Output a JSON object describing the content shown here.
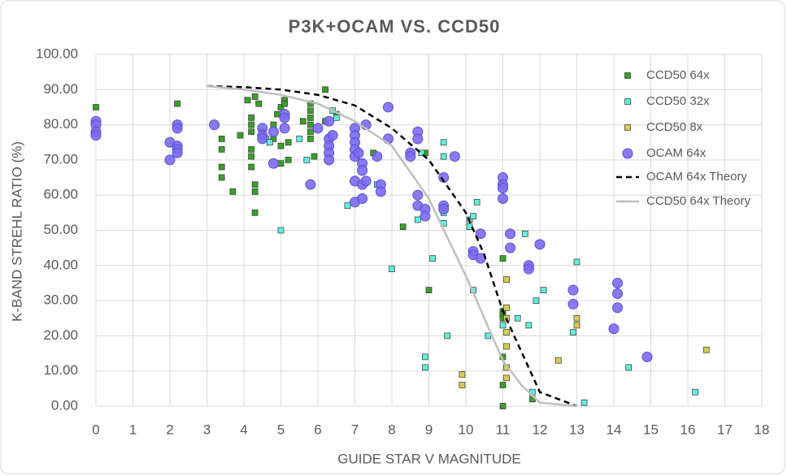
{
  "chart_data": {
    "type": "scatter",
    "title": "P3K+OCAM VS. CCD50",
    "xlabel": "GUIDE STAR V MAGNITUDE",
    "ylabel": "K-BAND STREHL RATIO (%)",
    "xlim": [
      0,
      18
    ],
    "xticks": [
      0,
      1,
      2,
      3,
      4,
      5,
      6,
      7,
      8,
      9,
      10,
      11,
      12,
      13,
      14,
      15,
      16,
      17,
      18
    ],
    "ylim": [
      0,
      100
    ],
    "yticks": [
      {
        "value": 0,
        "label": "0.00"
      },
      {
        "value": 10,
        "label": "10.00"
      },
      {
        "value": 20,
        "label": "20.00"
      },
      {
        "value": 30,
        "label": "30.00"
      },
      {
        "value": 40,
        "label": "40.00"
      },
      {
        "value": 50,
        "label": "50.00"
      },
      {
        "value": 60,
        "label": "60.00"
      },
      {
        "value": 70,
        "label": "70.00"
      },
      {
        "value": 80,
        "label": "80.00"
      },
      {
        "value": 90,
        "label": "90.00"
      },
      {
        "value": 100,
        "label": "100.00"
      }
    ],
    "grid": true,
    "legend": "right",
    "series": [
      {
        "name": "CCD50 64x",
        "color": "#3aa02a",
        "marker": "square",
        "x": [
          0,
          2.2,
          3.4,
          3.4,
          3.4,
          3.4,
          3.7,
          3.9,
          4.1,
          4.2,
          4.2,
          4.2,
          4.2,
          4.2,
          4.2,
          4.3,
          4.3,
          4.3,
          4.3,
          4.4,
          4.5,
          4.8,
          4.8,
          4.9,
          5,
          5,
          5,
          5.1,
          5.1,
          5.2,
          5.2,
          5.6,
          5.8,
          5.8,
          5.8,
          5.8,
          5.8,
          5.8,
          5.9,
          6.2,
          6.2,
          6.5,
          7.5,
          8.3,
          8.9,
          9,
          11,
          11,
          11,
          11,
          11,
          11,
          11,
          11.8
        ],
        "values": [
          85,
          86,
          76,
          73,
          68,
          65,
          61,
          77,
          87,
          82,
          80,
          78,
          73,
          71,
          68,
          88,
          63,
          61,
          55,
          86,
          78,
          80,
          76,
          83,
          85,
          74,
          69,
          87,
          86,
          75,
          70,
          81,
          86,
          84,
          82,
          80,
          78,
          76,
          71,
          90,
          81,
          83,
          72,
          51,
          72,
          33,
          42,
          27,
          26,
          25,
          14,
          6,
          0,
          2
        ]
      },
      {
        "name": "CCD50 32x",
        "color": "#5ff0dc",
        "marker": "square",
        "x": [
          4.6,
          4.7,
          5,
          5.5,
          5.7,
          6.4,
          6.5,
          6.8,
          7.6,
          8,
          8.7,
          8.8,
          8.9,
          8.9,
          9.1,
          9.4,
          9.4,
          9.5,
          9.4,
          9.4,
          10.1,
          10.1,
          10.2,
          10.3,
          10.2,
          10.6,
          11,
          11.4,
          11.6,
          11.7,
          11.8,
          11.9,
          12.1,
          12.9,
          13,
          13.2,
          14.4,
          16.2
        ],
        "values": [
          76,
          75,
          50,
          76,
          70,
          84,
          82,
          57,
          63,
          39,
          53,
          72,
          11,
          14,
          42,
          52,
          55,
          20,
          71,
          75,
          51,
          53,
          54,
          58,
          33,
          20,
          23,
          25,
          49,
          23,
          4,
          30,
          33,
          21,
          41,
          1,
          11,
          4
        ]
      },
      {
        "name": "CCD50 8x",
        "color": "#d8cc52",
        "marker": "square",
        "x": [
          9.9,
          9.9,
          11.1,
          11.1,
          11.1,
          11.1,
          11.1,
          11.1,
          11.1,
          12.5,
          13,
          13,
          16.5
        ],
        "values": [
          9,
          6,
          36,
          28,
          25,
          21,
          17,
          11,
          8,
          13,
          25,
          23,
          16
        ]
      },
      {
        "name": "OCAM 64x",
        "color": "#7b6cf0",
        "marker": "circle",
        "x": [
          0,
          0,
          0,
          0,
          2,
          2,
          2.2,
          2.2,
          2.2,
          2.2,
          2.2,
          3.2,
          4.5,
          4.5,
          4.5,
          4.8,
          4.8,
          5.1,
          5.1,
          5.1,
          5.8,
          6,
          6.3,
          6.3,
          6.3,
          6.3,
          6.3,
          6.4,
          7,
          7,
          7,
          7,
          7,
          7,
          7,
          7.1,
          7.2,
          7.2,
          7.2,
          7.2,
          7.3,
          7.3,
          7.6,
          7.7,
          7.7,
          7.9,
          7.9,
          8.5,
          8.5,
          8.7,
          8.7,
          8.7,
          8.7,
          8.9,
          8.9,
          9.4,
          9.4,
          9.4,
          9.7,
          10.2,
          10.2,
          10.4,
          10.4,
          11,
          11,
          11,
          11,
          11.2,
          11.2,
          11.7,
          11.7,
          12,
          12.9,
          12.9,
          14.1,
          14.1,
          14.1,
          14,
          14.9
        ],
        "values": [
          81,
          80,
          78,
          77,
          75,
          70,
          80,
          79,
          74,
          73,
          72,
          80,
          79,
          77,
          76,
          78,
          69,
          83,
          82,
          79,
          63,
          79,
          81,
          76,
          74,
          72,
          70,
          77,
          79,
          77,
          75,
          73,
          71,
          64,
          58,
          72,
          69,
          67,
          63,
          59,
          80,
          64,
          71,
          63,
          61,
          85,
          76,
          72,
          71,
          78,
          76,
          60,
          57,
          56,
          54,
          65,
          57,
          56,
          71,
          44,
          43,
          49,
          42,
          65,
          63,
          62,
          59,
          49,
          45,
          40,
          39,
          46,
          33,
          29,
          35,
          32,
          28,
          22,
          14
        ]
      },
      {
        "name": "OCAM 64x Theory",
        "color": "#000000",
        "marker": "line",
        "dash": true,
        "x": [
          3,
          4,
          5,
          6,
          7,
          8,
          9,
          10,
          10.5,
          11,
          12,
          13
        ],
        "values": [
          91,
          90.7,
          90,
          88.5,
          85.5,
          79,
          70,
          55,
          43,
          27,
          4,
          0
        ]
      },
      {
        "name": "CCD50 64x Theory",
        "color": "#bfbfbf",
        "marker": "line",
        "dash": false,
        "x": [
          3,
          4,
          5,
          6,
          7,
          8,
          9,
          10,
          11,
          11.5,
          12,
          13
        ],
        "values": [
          91,
          90,
          88.5,
          86,
          81,
          74,
          59,
          37,
          13,
          6,
          1,
          0
        ]
      }
    ]
  }
}
